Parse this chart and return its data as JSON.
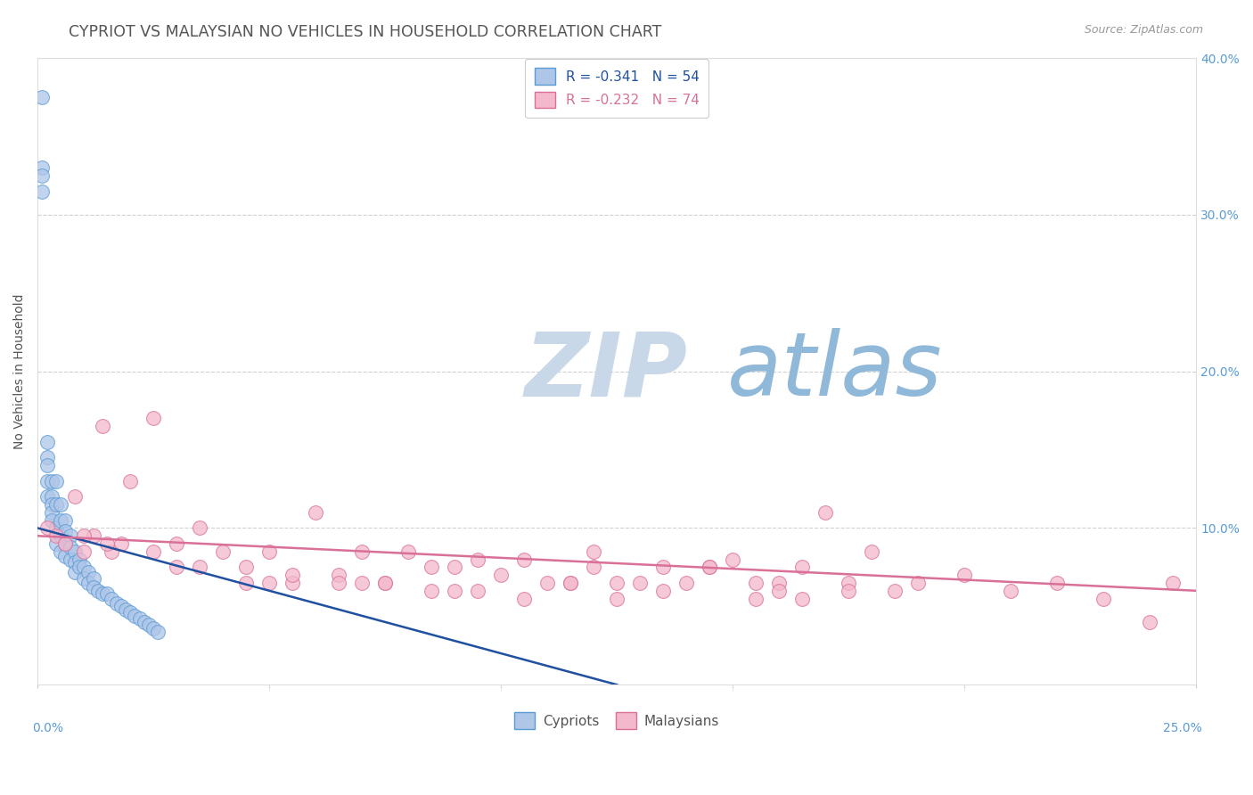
{
  "title": "CYPRIOT VS MALAYSIAN NO VEHICLES IN HOUSEHOLD CORRELATION CHART",
  "source": "Source: ZipAtlas.com",
  "ylabel": "No Vehicles in Household",
  "cypriot_R": -0.341,
  "cypriot_N": 54,
  "malaysian_R": -0.232,
  "malaysian_N": 74,
  "cypriot_color": "#aec6e8",
  "cypriot_edge": "#5b9bd5",
  "cypriot_line_color": "#2050a0",
  "malaysian_color": "#f4b8cc",
  "malaysian_edge": "#d97098",
  "malaysian_line_color": "#d97098",
  "bg_color": "#ffffff",
  "grid_color": "#cccccc",
  "watermark_zip": "ZIP",
  "watermark_atlas": "atlas",
  "watermark_zip_color": "#c8d8e8",
  "watermark_atlas_color": "#90b8d8",
  "title_color": "#555555",
  "axis_tick_color": "#5b9bd5",
  "legend_cy_color": "#2050a0",
  "legend_ma_color": "#d97098",
  "xlim": [
    0,
    0.25
  ],
  "ylim": [
    0,
    0.4
  ],
  "yticks": [
    0.1,
    0.2,
    0.3,
    0.4
  ],
  "ytick_labels": [
    "10.0%",
    "20.0%",
    "30.0%",
    "40.0%"
  ],
  "cypriot_x": [
    0.001,
    0.001,
    0.001,
    0.001,
    0.002,
    0.002,
    0.002,
    0.002,
    0.002,
    0.003,
    0.003,
    0.003,
    0.003,
    0.003,
    0.004,
    0.004,
    0.004,
    0.004,
    0.005,
    0.005,
    0.005,
    0.005,
    0.006,
    0.006,
    0.006,
    0.006,
    0.007,
    0.007,
    0.007,
    0.008,
    0.008,
    0.008,
    0.009,
    0.009,
    0.01,
    0.01,
    0.011,
    0.011,
    0.012,
    0.012,
    0.013,
    0.014,
    0.015,
    0.016,
    0.017,
    0.018,
    0.019,
    0.02,
    0.021,
    0.022,
    0.023,
    0.024,
    0.025,
    0.026
  ],
  "cypriot_y": [
    0.375,
    0.33,
    0.325,
    0.315,
    0.155,
    0.145,
    0.14,
    0.13,
    0.12,
    0.13,
    0.12,
    0.115,
    0.11,
    0.105,
    0.13,
    0.115,
    0.1,
    0.09,
    0.115,
    0.105,
    0.095,
    0.085,
    0.105,
    0.098,
    0.09,
    0.082,
    0.095,
    0.088,
    0.08,
    0.085,
    0.078,
    0.072,
    0.08,
    0.075,
    0.075,
    0.068,
    0.072,
    0.065,
    0.068,
    0.062,
    0.06,
    0.058,
    0.058,
    0.055,
    0.052,
    0.05,
    0.048,
    0.046,
    0.044,
    0.042,
    0.04,
    0.038,
    0.036,
    0.034
  ],
  "malaysian_x": [
    0.002,
    0.004,
    0.006,
    0.008,
    0.01,
    0.012,
    0.014,
    0.016,
    0.018,
    0.02,
    0.025,
    0.03,
    0.035,
    0.04,
    0.045,
    0.05,
    0.055,
    0.06,
    0.065,
    0.07,
    0.075,
    0.08,
    0.085,
    0.09,
    0.095,
    0.1,
    0.105,
    0.11,
    0.115,
    0.12,
    0.125,
    0.13,
    0.135,
    0.14,
    0.145,
    0.15,
    0.155,
    0.16,
    0.165,
    0.17,
    0.175,
    0.18,
    0.185,
    0.19,
    0.2,
    0.21,
    0.22,
    0.23,
    0.24,
    0.245,
    0.015,
    0.025,
    0.035,
    0.045,
    0.055,
    0.065,
    0.075,
    0.085,
    0.095,
    0.105,
    0.115,
    0.125,
    0.135,
    0.145,
    0.155,
    0.165,
    0.175,
    0.01,
    0.03,
    0.05,
    0.07,
    0.09,
    0.12,
    0.16
  ],
  "malaysian_y": [
    0.1,
    0.095,
    0.09,
    0.12,
    0.085,
    0.095,
    0.165,
    0.085,
    0.09,
    0.13,
    0.17,
    0.09,
    0.1,
    0.085,
    0.065,
    0.085,
    0.065,
    0.11,
    0.07,
    0.085,
    0.065,
    0.085,
    0.075,
    0.075,
    0.08,
    0.07,
    0.08,
    0.065,
    0.065,
    0.085,
    0.065,
    0.065,
    0.075,
    0.065,
    0.075,
    0.08,
    0.065,
    0.065,
    0.075,
    0.11,
    0.065,
    0.085,
    0.06,
    0.065,
    0.07,
    0.06,
    0.065,
    0.055,
    0.04,
    0.065,
    0.09,
    0.085,
    0.075,
    0.075,
    0.07,
    0.065,
    0.065,
    0.06,
    0.06,
    0.055,
    0.065,
    0.055,
    0.06,
    0.075,
    0.055,
    0.055,
    0.06,
    0.095,
    0.075,
    0.065,
    0.065,
    0.06,
    0.075,
    0.06
  ]
}
